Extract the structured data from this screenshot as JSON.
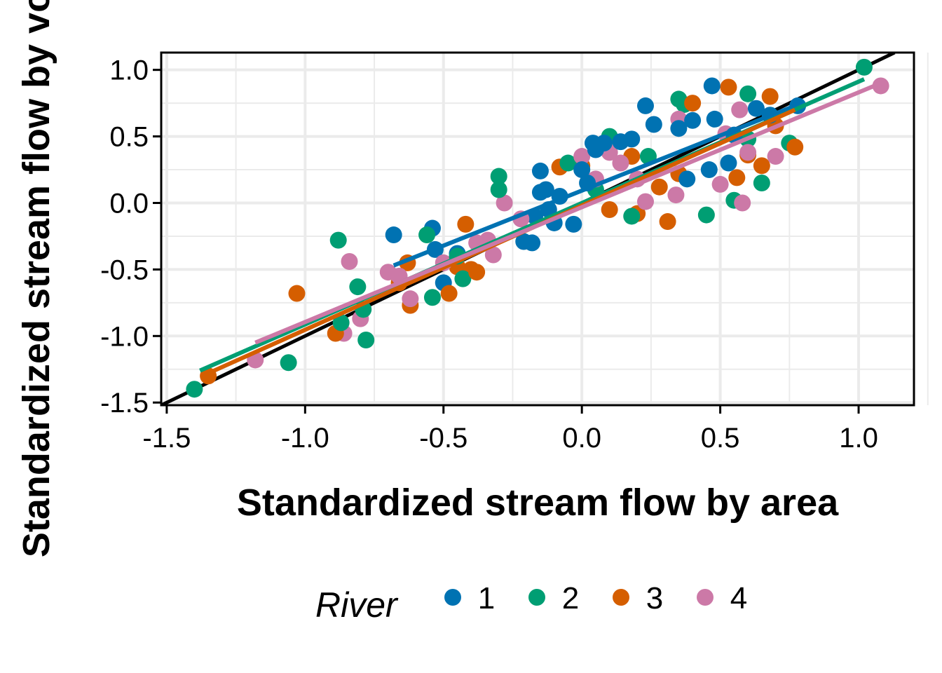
{
  "chart_data": {
    "type": "scatter",
    "title": "",
    "xlabel": "Standardized stream flow by area",
    "ylabel": "Standardized stream flow by volume",
    "xlim": [
      -1.52,
      1.2
    ],
    "ylim": [
      -1.52,
      1.13
    ],
    "xticks": [
      "-1.5",
      "-1.0",
      "-0.5",
      "0.0",
      "0.5",
      "1.0"
    ],
    "yticks": [
      "-1.5",
      "-1.0",
      "-0.5",
      "0.0",
      "0.5",
      "1.0"
    ],
    "grid": true,
    "legend": {
      "title": "River",
      "position": "bottom"
    },
    "identity_line": {
      "color": "#000000",
      "from": [
        -1.52,
        -1.52
      ],
      "to": [
        1.13,
        1.13
      ]
    },
    "series": [
      {
        "name": "1",
        "color": "#0072B2",
        "fit": {
          "x": [
            -0.68,
            0.77
          ],
          "y": [
            -0.47,
            0.73
          ]
        },
        "points": [
          [
            -0.68,
            -0.24
          ],
          [
            -0.54,
            -0.19
          ],
          [
            -0.53,
            -0.35
          ],
          [
            -0.5,
            -0.6
          ],
          [
            -0.45,
            -0.38
          ],
          [
            -0.21,
            -0.29
          ],
          [
            -0.18,
            -0.3
          ],
          [
            -0.17,
            -0.1
          ],
          [
            -0.15,
            0.24
          ],
          [
            -0.15,
            0.08
          ],
          [
            -0.13,
            0.1
          ],
          [
            -0.12,
            -0.05
          ],
          [
            -0.1,
            -0.15
          ],
          [
            -0.08,
            0.05
          ],
          [
            -0.03,
            -0.16
          ],
          [
            0.0,
            0.25
          ],
          [
            0.02,
            0.15
          ],
          [
            0.04,
            0.45
          ],
          [
            0.05,
            0.4
          ],
          [
            0.08,
            0.45
          ],
          [
            0.14,
            0.46
          ],
          [
            0.18,
            0.48
          ],
          [
            0.23,
            0.73
          ],
          [
            0.26,
            0.59
          ],
          [
            0.35,
            0.56
          ],
          [
            0.4,
            0.62
          ],
          [
            0.38,
            0.18
          ],
          [
            0.48,
            0.63
          ],
          [
            0.47,
            0.88
          ],
          [
            0.46,
            0.25
          ],
          [
            0.53,
            0.3
          ],
          [
            0.55,
            0.51
          ],
          [
            0.63,
            0.71
          ],
          [
            0.68,
            0.66
          ],
          [
            0.78,
            0.73
          ]
        ]
      },
      {
        "name": "2",
        "color": "#009E73",
        "fit": {
          "x": [
            -1.38,
            1.02
          ],
          "y": [
            -1.26,
            0.93
          ]
        },
        "points": [
          [
            -1.4,
            -1.4
          ],
          [
            -1.06,
            -1.2
          ],
          [
            -0.88,
            -0.28
          ],
          [
            -0.87,
            -0.9
          ],
          [
            -0.81,
            -0.63
          ],
          [
            -0.79,
            -0.8
          ],
          [
            -0.78,
            -1.03
          ],
          [
            -0.56,
            -0.24
          ],
          [
            -0.54,
            -0.71
          ],
          [
            -0.45,
            -0.4
          ],
          [
            -0.43,
            -0.57
          ],
          [
            -0.3,
            0.2
          ],
          [
            -0.3,
            0.1
          ],
          [
            -0.05,
            0.3
          ],
          [
            0.05,
            0.1
          ],
          [
            0.1,
            0.5
          ],
          [
            0.18,
            -0.1
          ],
          [
            0.24,
            0.35
          ],
          [
            0.35,
            0.78
          ],
          [
            0.37,
            0.74
          ],
          [
            0.45,
            -0.09
          ],
          [
            0.55,
            0.02
          ],
          [
            0.6,
            0.82
          ],
          [
            0.6,
            0.48
          ],
          [
            0.65,
            0.15
          ],
          [
            0.75,
            0.45
          ],
          [
            1.02,
            1.02
          ]
        ]
      },
      {
        "name": "3",
        "color": "#D55E00",
        "fit": {
          "x": [
            -1.35,
            0.77
          ],
          "y": [
            -1.28,
            0.7
          ]
        },
        "points": [
          [
            -1.35,
            -1.3
          ],
          [
            -1.03,
            -0.68
          ],
          [
            -0.89,
            -0.98
          ],
          [
            -0.66,
            -0.6
          ],
          [
            -0.63,
            -0.45
          ],
          [
            -0.62,
            -0.77
          ],
          [
            -0.48,
            -0.68
          ],
          [
            -0.45,
            -0.48
          ],
          [
            -0.42,
            -0.16
          ],
          [
            -0.4,
            -0.5
          ],
          [
            -0.38,
            -0.52
          ],
          [
            -0.08,
            0.27
          ],
          [
            0.0,
            0.28
          ],
          [
            0.1,
            -0.05
          ],
          [
            0.18,
            0.35
          ],
          [
            0.2,
            -0.08
          ],
          [
            0.28,
            0.12
          ],
          [
            0.31,
            -0.14
          ],
          [
            0.35,
            0.22
          ],
          [
            0.4,
            0.75
          ],
          [
            0.53,
            0.87
          ],
          [
            0.56,
            0.19
          ],
          [
            0.6,
            0.36
          ],
          [
            0.65,
            0.28
          ],
          [
            0.68,
            0.8
          ],
          [
            0.7,
            0.58
          ],
          [
            0.77,
            0.42
          ]
        ]
      },
      {
        "name": "4",
        "color": "#CC79A7",
        "fit": {
          "x": [
            -1.18,
            1.08
          ],
          "y": [
            -1.05,
            0.9
          ]
        },
        "points": [
          [
            -1.18,
            -1.18
          ],
          [
            -0.86,
            -0.98
          ],
          [
            -0.84,
            -0.44
          ],
          [
            -0.8,
            -0.87
          ],
          [
            -0.7,
            -0.52
          ],
          [
            -0.66,
            -0.55
          ],
          [
            -0.62,
            -0.72
          ],
          [
            -0.5,
            -0.45
          ],
          [
            -0.38,
            -0.3
          ],
          [
            -0.34,
            -0.28
          ],
          [
            -0.32,
            -0.39
          ],
          [
            -0.28,
            0.0
          ],
          [
            -0.22,
            -0.12
          ],
          [
            0.0,
            0.35
          ],
          [
            0.05,
            0.18
          ],
          [
            0.1,
            0.38
          ],
          [
            0.14,
            0.3
          ],
          [
            0.2,
            0.18
          ],
          [
            0.23,
            0.01
          ],
          [
            0.34,
            0.06
          ],
          [
            0.35,
            0.63
          ],
          [
            0.5,
            0.14
          ],
          [
            0.52,
            0.52
          ],
          [
            0.57,
            0.7
          ],
          [
            0.58,
            0.0
          ],
          [
            0.6,
            0.38
          ],
          [
            0.7,
            0.35
          ],
          [
            1.08,
            0.88
          ]
        ]
      }
    ]
  }
}
